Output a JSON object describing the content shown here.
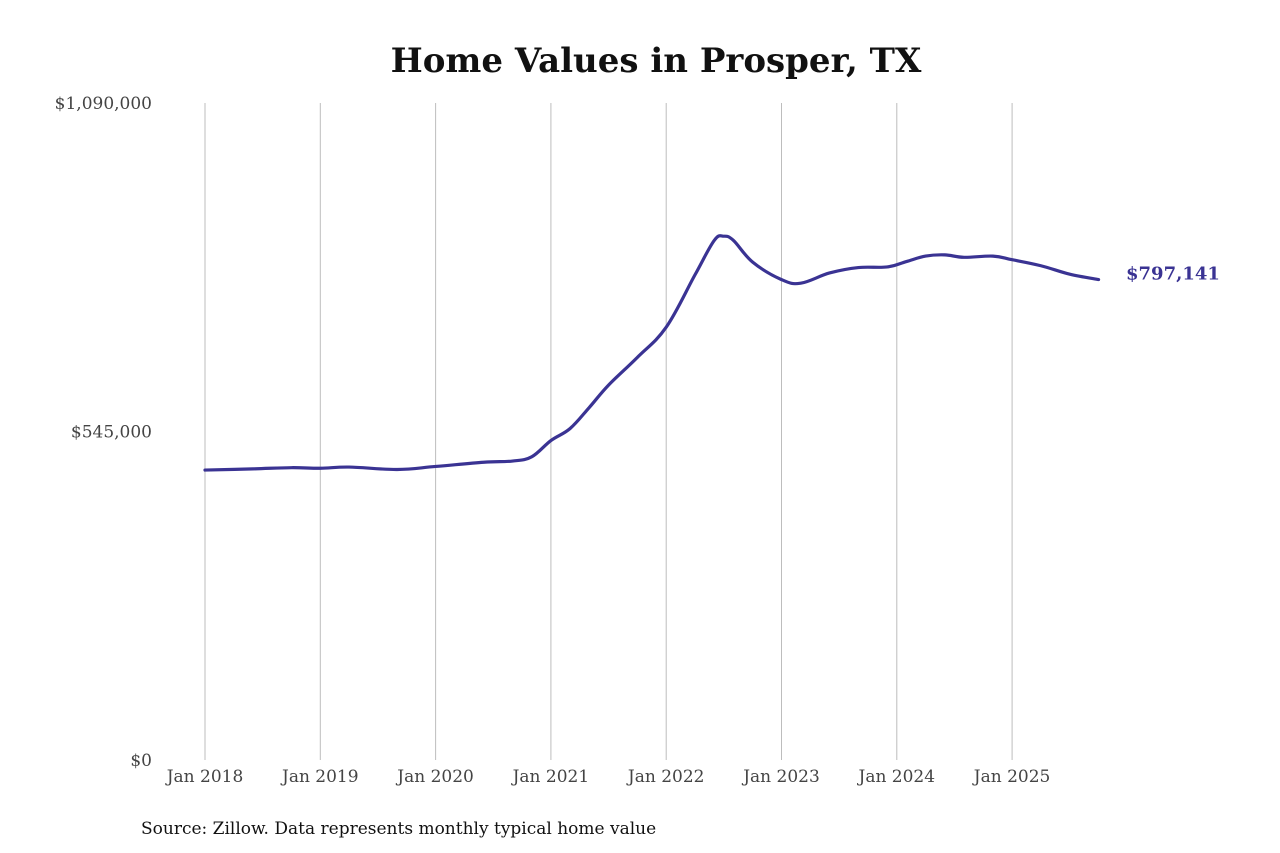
{
  "chart_data": {
    "type": "line",
    "title": "Home Values in Prosper, TX",
    "xlabel": "",
    "ylabel": "",
    "source": "Source: Zillow. Data represents monthly typical home value",
    "ylim": [
      0,
      1090000
    ],
    "y_ticks": [
      0,
      545000,
      1090000
    ],
    "y_tick_labels": [
      "$0",
      "$545,000",
      "$1,090,000"
    ],
    "x_ticks": [
      "2018-01",
      "2019-01",
      "2020-01",
      "2021-01",
      "2022-01",
      "2023-01",
      "2024-01",
      "2025-01"
    ],
    "x_tick_labels": [
      "Jan 2018",
      "Jan 2019",
      "Jan 2020",
      "Jan 2021",
      "Jan 2022",
      "Jan 2023",
      "Jan 2024",
      "Jan 2025"
    ],
    "grid": "vertical lines at x ticks",
    "line_color": "#3a3393",
    "end_label": "$797,141",
    "series": [
      {
        "x": [
          "2018-01",
          "2018-06",
          "2018-10",
          "2019-01",
          "2019-04",
          "2019-09",
          "2020-01",
          "2020-06",
          "2020-09",
          "2020-11",
          "2021-01",
          "2021-03",
          "2021-05",
          "2021-07",
          "2021-10",
          "2022-01",
          "2022-04",
          "2022-06",
          "2022-07",
          "2022-08",
          "2022-10",
          "2023-01",
          "2023-03",
          "2023-06",
          "2023-09",
          "2023-12",
          "2024-02",
          "2024-04",
          "2024-06",
          "2024-08",
          "2024-11",
          "2025-01",
          "2025-04",
          "2025-07",
          "2025-10"
        ],
        "y": [
          481000,
          483000,
          485000,
          484000,
          486000,
          482000,
          487000,
          494000,
          496000,
          503000,
          530000,
          550000,
          585000,
          622000,
          668000,
          718000,
          805000,
          862000,
          869000,
          862000,
          826000,
          797000,
          791000,
          808000,
          817000,
          818000,
          827000,
          836000,
          838000,
          834000,
          836000,
          830000,
          820000,
          806000,
          797141
        ]
      }
    ]
  }
}
